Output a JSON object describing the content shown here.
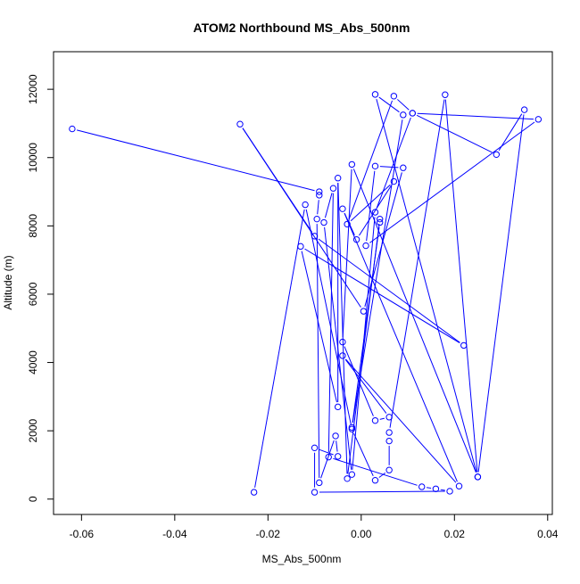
{
  "chart_data": {
    "type": "line",
    "title": "ATOM2 Northbound MS_Abs_500nm",
    "xlabel": "MS_Abs_500nm",
    "ylabel": "Altitude (m)",
    "xlim": [
      -0.066,
      0.041
    ],
    "ylim": [
      -450,
      13100
    ],
    "xticks": [
      -0.06,
      -0.04,
      -0.02,
      0.0,
      0.02,
      0.04
    ],
    "xtick_labels": [
      "-0.06",
      "-0.04",
      "-0.02",
      "0.00",
      "0.02",
      "0.04"
    ],
    "yticks": [
      0,
      2000,
      4000,
      6000,
      8000,
      10000,
      12000
    ],
    "ytick_labels": [
      "0",
      "2000",
      "4000",
      "6000",
      "8000",
      "10000",
      "12000"
    ],
    "grid": false,
    "legend": "none",
    "marker": "open-circle",
    "series": [
      {
        "color": "#0000ff",
        "points": [
          {
            "x": -0.062,
            "y": 10840
          },
          {
            "x": -0.009,
            "y": 9000
          },
          {
            "x": -0.009,
            "y": 8900
          },
          {
            "x": -0.0095,
            "y": 8200
          },
          {
            "x": -0.009,
            "y": 480
          },
          {
            "x": -0.0055,
            "y": 1850
          },
          {
            "x": -0.005,
            "y": 1250
          },
          {
            "x": -0.01,
            "y": 1500
          },
          {
            "x": -0.01,
            "y": 200
          },
          {
            "x": 0.019,
            "y": 230
          },
          {
            "x": 0.016,
            "y": 300
          },
          {
            "x": 0.013,
            "y": 360
          },
          {
            "x": -0.007,
            "y": 1230
          },
          {
            "x": -0.006,
            "y": 9100
          },
          {
            "x": -0.008,
            "y": 8100
          },
          {
            "x": -0.002,
            "y": 720
          },
          {
            "x": 0.003,
            "y": 8400
          },
          {
            "x": 0.011,
            "y": 11300
          },
          {
            "x": 0.038,
            "y": 11120
          },
          {
            "x": 0.001,
            "y": 7420
          },
          {
            "x": 0.003,
            "y": 9750
          },
          {
            "x": 0.009,
            "y": 9700
          },
          {
            "x": 0.0005,
            "y": 5500
          },
          {
            "x": -0.026,
            "y": 10980
          },
          {
            "x": -0.01,
            "y": 7700
          },
          {
            "x": 0.022,
            "y": 4500
          },
          {
            "x": -0.013,
            "y": 7400
          },
          {
            "x": -0.005,
            "y": 2700
          },
          {
            "x": -0.005,
            "y": 9400
          },
          {
            "x": -0.003,
            "y": 600
          },
          {
            "x": 0.004,
            "y": 8200
          },
          {
            "x": 0.004,
            "y": 8100
          },
          {
            "x": -0.002,
            "y": 2100
          },
          {
            "x": 0.009,
            "y": 11250
          },
          {
            "x": 0.003,
            "y": 11850
          },
          {
            "x": 0.025,
            "y": 650
          },
          {
            "x": -0.002,
            "y": 9800
          },
          {
            "x": -0.004,
            "y": 4600
          },
          {
            "x": 0.003,
            "y": 2300
          },
          {
            "x": 0.006,
            "y": 2400
          },
          {
            "x": -0.004,
            "y": 4200
          },
          {
            "x": 0.021,
            "y": 380
          },
          {
            "x": -0.004,
            "y": 8500
          },
          {
            "x": -0.001,
            "y": 7600
          },
          {
            "x": 0.007,
            "y": 9300
          },
          {
            "x": -0.003,
            "y": 8050
          },
          {
            "x": 0.007,
            "y": 11800
          },
          {
            "x": 0.011,
            "y": 11300
          },
          {
            "x": 0.029,
            "y": 10090
          },
          {
            "x": 0.035,
            "y": 11400
          },
          {
            "x": 0.025,
            "y": 650
          },
          {
            "x": 0.018,
            "y": 11840
          },
          {
            "x": 0.006,
            "y": 1950
          },
          {
            "x": 0.006,
            "y": 1700
          },
          {
            "x": 0.006,
            "y": 850
          },
          {
            "x": 0.003,
            "y": 550
          },
          {
            "x": -0.002,
            "y": 2050
          },
          {
            "x": -0.012,
            "y": 8620
          },
          {
            "x": -0.023,
            "y": 200
          }
        ]
      }
    ]
  }
}
